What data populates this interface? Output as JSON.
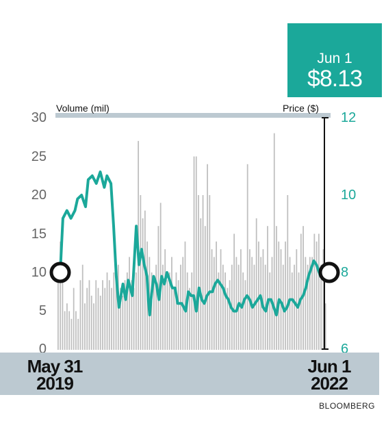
{
  "callout": {
    "date": "Jun 1",
    "price": "$8.13"
  },
  "legend": {
    "left": "Volume (mil)",
    "right": "Price ($)"
  },
  "x_labels": {
    "start_line1": "May 31",
    "start_line2": "2019",
    "end_line1": "Jun 1",
    "end_line2": "2022"
  },
  "source": "BLOOMBERG",
  "colors": {
    "price_line": "#1ba89a",
    "volume_bars": "#bfbfbf",
    "band": "#bcc9d1",
    "axis": "#111111"
  },
  "chart_data": {
    "type": "bar+line",
    "x_range": [
      "2019-05-31",
      "2022-06-01"
    ],
    "volume": {
      "name": "Volume (mil)",
      "ylim": [
        0,
        30
      ],
      "ticks": [
        "0",
        "5",
        "10",
        "15",
        "20",
        "25",
        "30"
      ],
      "values": [
        10,
        14,
        9,
        5,
        6,
        5,
        4,
        8,
        5,
        4,
        9,
        11,
        6,
        8,
        9,
        7,
        6,
        9,
        8,
        7,
        9,
        8,
        10,
        9,
        8,
        10,
        9,
        11,
        8,
        7,
        9,
        10,
        12,
        9,
        8,
        10,
        27,
        20,
        17,
        18,
        14,
        12,
        10,
        9,
        11,
        16,
        19,
        11,
        13,
        9,
        10,
        12,
        8,
        10,
        9,
        11,
        12,
        14,
        10,
        8,
        10,
        25,
        25,
        20,
        17,
        20,
        16,
        24,
        20,
        13,
        12,
        14,
        10,
        13,
        11,
        10,
        8,
        9,
        11,
        15,
        12,
        11,
        13,
        10,
        9,
        24,
        13,
        12,
        11,
        17,
        14,
        12,
        13,
        11,
        16,
        10,
        12,
        28,
        16,
        14,
        13,
        11,
        14,
        20,
        12,
        10,
        11,
        13,
        10,
        15,
        16,
        12,
        11,
        12,
        12,
        15,
        14,
        15,
        11,
        13,
        6
      ]
    },
    "price": {
      "name": "Price ($)",
      "ylim": [
        6,
        12
      ],
      "ticks": [
        "6",
        "8",
        "10",
        "12"
      ],
      "x": [
        0,
        0.01,
        0.025,
        0.04,
        0.055,
        0.065,
        0.08,
        0.095,
        0.105,
        0.12,
        0.135,
        0.15,
        0.165,
        0.175,
        0.19,
        0.2,
        0.21,
        0.22,
        0.235,
        0.245,
        0.255,
        0.27,
        0.285,
        0.295,
        0.305,
        0.315,
        0.325,
        0.33,
        0.335,
        0.34,
        0.35,
        0.36,
        0.37,
        0.38,
        0.39,
        0.4,
        0.41,
        0.42,
        0.43,
        0.44,
        0.455,
        0.47,
        0.48,
        0.49,
        0.5,
        0.51,
        0.52,
        0.53,
        0.54,
        0.55,
        0.56,
        0.57,
        0.58,
        0.59,
        0.6,
        0.61,
        0.62,
        0.63,
        0.64,
        0.65,
        0.66,
        0.67,
        0.68,
        0.69,
        0.7,
        0.71,
        0.72,
        0.73,
        0.74,
        0.75,
        0.76,
        0.77,
        0.78,
        0.79,
        0.8,
        0.81,
        0.82,
        0.83,
        0.84,
        0.85,
        0.86,
        0.87,
        0.88,
        0.89,
        0.9,
        0.91,
        0.92,
        0.93,
        0.94,
        0.95,
        0.96,
        0.975,
        1.0
      ],
      "values": [
        8.0,
        9.4,
        9.6,
        9.4,
        9.6,
        9.9,
        10.0,
        9.7,
        10.4,
        10.5,
        10.3,
        10.6,
        10.2,
        10.5,
        10.3,
        9.2,
        7.9,
        7.1,
        7.7,
        7.3,
        7.8,
        7.4,
        9.2,
        8.2,
        8.6,
        8.2,
        7.9,
        7.3,
        6.9,
        7.3,
        7.9,
        7.7,
        7.3,
        7.9,
        7.7,
        8.0,
        7.8,
        7.6,
        7.6,
        7.2,
        7.2,
        7.0,
        7.5,
        7.4,
        7.4,
        7.0,
        7.6,
        7.3,
        7.2,
        7.4,
        7.5,
        7.5,
        7.7,
        7.8,
        7.7,
        7.6,
        7.4,
        7.3,
        7.1,
        7.0,
        7.0,
        7.2,
        7.1,
        7.3,
        7.4,
        7.3,
        7.1,
        7.2,
        7.3,
        7.4,
        7.1,
        7.0,
        7.3,
        7.3,
        7.1,
        6.9,
        7.3,
        7.2,
        7.0,
        7.1,
        7.3,
        7.3,
        7.2,
        7.1,
        7.3,
        7.4,
        7.6,
        7.9,
        8.1,
        8.3,
        8.2,
        7.9,
        8.13
      ]
    }
  }
}
